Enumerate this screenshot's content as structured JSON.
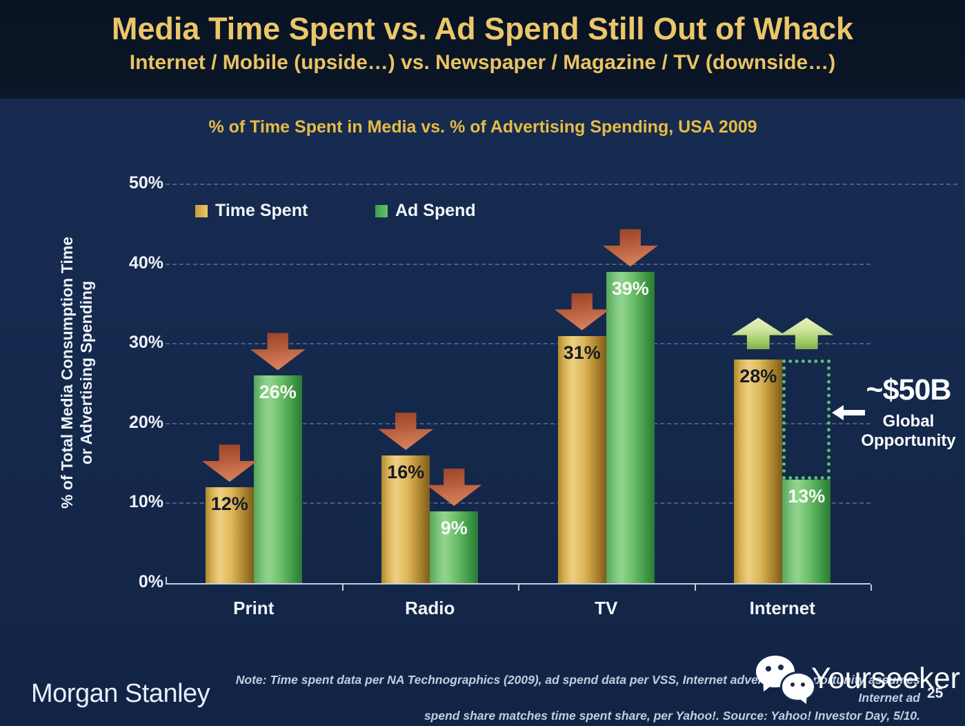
{
  "slide": {
    "title": "Media Time Spent vs. Ad Spend Still Out of Whack",
    "subtitle": "Internet / Mobile (upside…) vs. Newspaper / Magazine / TV (downside…)",
    "page_number": "25"
  },
  "chart_data": {
    "type": "bar",
    "title": "% of Time Spent in Media vs. % of Advertising Spending, USA 2009",
    "ylabel": "% of Total Media Consumption Time or Advertising Spending",
    "ylabel_lines": [
      "% of Total Media Consumption Time",
      "or Advertising Spending"
    ],
    "categories": [
      "Print",
      "Radio",
      "TV",
      "Internet"
    ],
    "series": [
      {
        "name": "Time Spent",
        "color_family": "gold",
        "values": [
          12,
          16,
          31,
          28
        ],
        "labels": [
          "12%",
          "16%",
          "31%",
          "28%"
        ],
        "trend": [
          "down",
          "down",
          "down",
          "up"
        ]
      },
      {
        "name": "Ad Spend",
        "color_family": "green",
        "values": [
          26,
          9,
          39,
          13
        ],
        "labels": [
          "26%",
          "9%",
          "39%",
          "13%"
        ],
        "trend": [
          "down",
          "down",
          "down",
          "up"
        ]
      }
    ],
    "unit": "%",
    "ylim": [
      0,
      50
    ],
    "y_tick_values": [
      50,
      40,
      30,
      20,
      10,
      0
    ],
    "y_tick_labels": [
      "50%",
      "40%",
      "30%",
      "20%",
      "10%",
      "0%"
    ],
    "grid": "horizontal-dotted",
    "legend_position": "top-left-inside",
    "annotation": {
      "value": "~$50B",
      "label_lines": [
        "Global",
        "Opportunity"
      ],
      "box": {
        "category": "Internet",
        "series": "Ad Spend",
        "from_value": 13,
        "to_value": 28
      }
    }
  },
  "colors": {
    "header_bg": "#0a1626",
    "body_bg": "#152a4e",
    "title_gold": "#ebc76a",
    "chart_title_gold": "#e7bb45",
    "text_white": "#f2f5fa",
    "note_text": "#c2cde2",
    "bar_gold": "#ddb557",
    "bar_green": "#68bb66",
    "down_arrow": "#c2633f",
    "up_arrow": "#a6cf6b",
    "dashed_box_green": "#57c270",
    "gridline": "#8fa0bf"
  },
  "footer": {
    "brand": "Morgan Stanley",
    "note_lines": [
      "Note: Time spent data per NA Technographics (2009), ad spend data per VSS, Internet advertising opportunity assumes Internet ad",
      "spend share matches time spent share, per Yahoo!. Source: Yahoo! Investor Day, 5/10."
    ],
    "watermark": "Yourseeker",
    "watermark_icon": "wechat-icon"
  }
}
